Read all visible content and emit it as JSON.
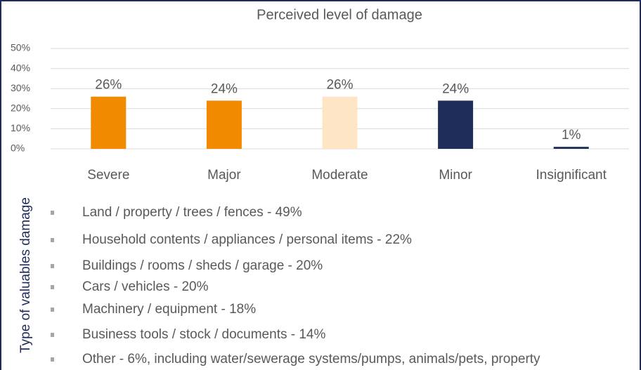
{
  "chart_data": {
    "type": "bar",
    "title": "Perceived level of damage",
    "categories": [
      "Severe",
      "Major",
      "Moderate",
      "Minor",
      "Insignificant"
    ],
    "values": [
      26,
      24,
      26,
      24,
      1
    ],
    "value_labels": [
      "26%",
      "24%",
      "26%",
      "24%",
      "1%"
    ],
    "colors": [
      "#f28a00",
      "#f28a00",
      "#fde5c6",
      "#1f2d5a",
      "#1f2d5a"
    ],
    "ylim": [
      0,
      50
    ],
    "yticks": [
      {
        "value": 0,
        "label": "0%"
      },
      {
        "value": 10,
        "label": "10%"
      },
      {
        "value": 20,
        "label": "20%"
      },
      {
        "value": 30,
        "label": "30%"
      },
      {
        "value": 40,
        "label": "40%"
      },
      {
        "value": 50,
        "label": "50%"
      }
    ],
    "grid": true
  },
  "list": {
    "label": "Type of valuables damage",
    "items": [
      "Land / property / trees / fences - 49%",
      "Household contents / appliances / personal items - 22%",
      "Buildings / rooms / sheds / garage - 20%",
      "Cars / vehicles - 20%",
      "Machinery / equipment - 18%",
      "Business tools / stock / documents - 14%",
      "Other - 6%, including water/sewerage systems/pumps, animals/pets, property"
    ]
  }
}
